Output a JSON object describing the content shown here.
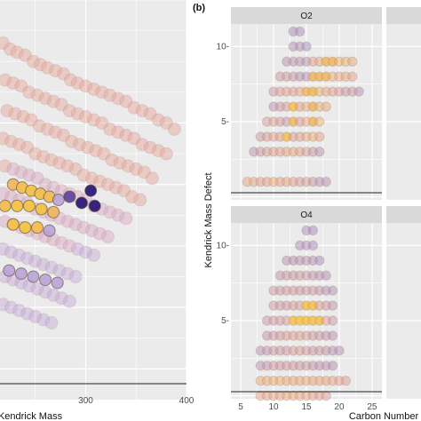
{
  "chart_data": [
    {
      "type": "scatter",
      "panel": "a",
      "xlabel": "Kendrick Mass",
      "ylabel": "",
      "xlim": [
        215,
        400
      ],
      "ylim": [
        -0.3,
        1.0
      ],
      "x_ticks": [
        300,
        400
      ],
      "x_tick_labels": [
        "300",
        "400"
      ],
      "grid": true,
      "series": [
        {
          "role": "background-cloud",
          "x": [
            218,
            225,
            232,
            240,
            248,
            255,
            262,
            270,
            278,
            285,
            292,
            300,
            308,
            316,
            324,
            332,
            340,
            348,
            356,
            364,
            372,
            380,
            388,
            220,
            228,
            236,
            244,
            252,
            260,
            268,
            276,
            284,
            292,
            300,
            308,
            316,
            324,
            332,
            340,
            348,
            356,
            364,
            372,
            380,
            222,
            230,
            238,
            246,
            254,
            262,
            270,
            278,
            286,
            294,
            302,
            310,
            318,
            326,
            334,
            342,
            350,
            358,
            366,
            218,
            226,
            234,
            242,
            250,
            258,
            266,
            274,
            282,
            290,
            298,
            306,
            314,
            322,
            330,
            338,
            346,
            354,
            220,
            228,
            236,
            244,
            252,
            260,
            268,
            276,
            284,
            292,
            300,
            308,
            316,
            324,
            332,
            340,
            218,
            226,
            234,
            242,
            250,
            258,
            266,
            274,
            282,
            290,
            298,
            306,
            314,
            322,
            220,
            228,
            236,
            244,
            252,
            260,
            268,
            276,
            284,
            292,
            300,
            308,
            218,
            226,
            234,
            242,
            250,
            258,
            266,
            274,
            282,
            290,
            220,
            228,
            236,
            244,
            252,
            260,
            268,
            276,
            284,
            218,
            226,
            234,
            242,
            250,
            258,
            266
          ],
          "y": [
            0.86,
            0.84,
            0.83,
            0.82,
            0.8,
            0.79,
            0.78,
            0.77,
            0.76,
            0.74,
            0.73,
            0.72,
            0.71,
            0.7,
            0.69,
            0.68,
            0.67,
            0.65,
            0.64,
            0.63,
            0.61,
            0.6,
            0.58,
            0.74,
            0.73,
            0.72,
            0.7,
            0.69,
            0.68,
            0.67,
            0.66,
            0.64,
            0.63,
            0.62,
            0.61,
            0.6,
            0.58,
            0.57,
            0.56,
            0.55,
            0.53,
            0.52,
            0.51,
            0.5,
            0.64,
            0.63,
            0.62,
            0.61,
            0.59,
            0.58,
            0.57,
            0.56,
            0.54,
            0.53,
            0.52,
            0.51,
            0.5,
            0.48,
            0.47,
            0.46,
            0.45,
            0.44,
            0.42,
            0.55,
            0.54,
            0.53,
            0.52,
            0.5,
            0.49,
            0.48,
            0.47,
            0.46,
            0.45,
            0.43,
            0.42,
            0.41,
            0.4,
            0.39,
            0.38,
            0.36,
            0.35,
            0.46,
            0.45,
            0.44,
            0.43,
            0.42,
            0.4,
            0.39,
            0.38,
            0.37,
            0.36,
            0.35,
            0.33,
            0.32,
            0.31,
            0.3,
            0.29,
            0.37,
            0.36,
            0.35,
            0.34,
            0.32,
            0.31,
            0.3,
            0.29,
            0.28,
            0.27,
            0.26,
            0.25,
            0.24,
            0.23,
            0.28,
            0.27,
            0.26,
            0.25,
            0.24,
            0.23,
            0.22,
            0.21,
            0.2,
            0.19,
            0.18,
            0.17,
            0.19,
            0.18,
            0.17,
            0.16,
            0.15,
            0.14,
            0.13,
            0.12,
            0.11,
            0.1,
            0.1,
            0.09,
            0.08,
            0.07,
            0.06,
            0.05,
            0.04,
            0.03,
            0.02,
            0.01,
            0.0,
            -0.01,
            -0.02,
            -0.03,
            -0.04,
            -0.05
          ]
        },
        {
          "role": "highlight",
          "x": [
            228,
            237,
            246,
            255,
            264,
            273,
            220,
            232,
            244,
            256,
            268,
            228,
            240,
            252,
            264,
            224,
            236,
            248,
            260,
            272,
            284,
            296,
            305,
            309
          ],
          "y": [
            0.4,
            0.39,
            0.38,
            0.37,
            0.36,
            0.35,
            0.33,
            0.33,
            0.33,
            0.32,
            0.31,
            0.27,
            0.26,
            0.26,
            0.25,
            0.12,
            0.11,
            0.1,
            0.09,
            0.08,
            0.36,
            0.34,
            0.38,
            0.33
          ],
          "level": [
            0.8,
            0.9,
            0.95,
            0.9,
            0.85,
            0.7,
            0.9,
            1,
            1,
            0.95,
            0.8,
            0.95,
            1,
            0.9,
            0.7,
            0.55,
            0.5,
            0.6,
            0.5,
            0.45,
            0.25,
            0.15,
            0.1,
            0.2
          ]
        }
      ]
    },
    {
      "type": "scatter",
      "panel": "b",
      "panel_label": "(b)",
      "xlabel": "Carbon Number",
      "ylabel": "Kendrick Mass Defect",
      "xlim": [
        3.5,
        26.5
      ],
      "ylim": [
        -0.2,
        11.5
      ],
      "x_ticks": [
        5,
        10,
        15,
        20,
        25
      ],
      "x_tick_labels": [
        "5",
        "10",
        "15",
        "20",
        "25"
      ],
      "y_ticks": [
        5,
        10
      ],
      "y_tick_labels": [
        "5-",
        "10-"
      ],
      "grid": true,
      "facets": [
        {
          "label": "O2",
          "x": [
            13,
            14,
            13,
            14,
            15,
            12,
            13,
            14,
            15,
            16,
            17,
            18,
            19,
            20,
            21,
            22,
            11,
            12,
            13,
            14,
            15,
            16,
            17,
            18,
            19,
            20,
            21,
            22,
            10,
            11,
            12,
            13,
            14,
            15,
            16,
            17,
            18,
            19,
            20,
            21,
            22,
            23,
            10,
            11,
            12,
            13,
            14,
            15,
            16,
            17,
            18,
            9,
            10,
            11,
            12,
            13,
            14,
            15,
            16,
            17,
            8,
            9,
            10,
            11,
            12,
            13,
            14,
            15,
            16,
            17,
            7,
            8,
            9,
            10,
            11,
            12,
            13,
            14,
            15,
            16,
            17,
            6,
            7,
            8,
            9,
            10,
            11,
            12,
            13,
            14,
            15,
            16,
            17,
            18
          ],
          "y": [
            11,
            11,
            10,
            10,
            10,
            9,
            9,
            9,
            9,
            9,
            9,
            9,
            9,
            9,
            9,
            9,
            8,
            8,
            8,
            8,
            8,
            8,
            8,
            8,
            8,
            8,
            8,
            8,
            7,
            7,
            7,
            7,
            7,
            7,
            7,
            7,
            7,
            7,
            7,
            7,
            7,
            7,
            6,
            6,
            6,
            6,
            6,
            6,
            6,
            6,
            6,
            5,
            5,
            5,
            5,
            5,
            5,
            5,
            5,
            5,
            4,
            4,
            4,
            4,
            4,
            4,
            4,
            4,
            4,
            4,
            3,
            3,
            3,
            3,
            3,
            3,
            3,
            3,
            3,
            3,
            3,
            1,
            1,
            1,
            1,
            1,
            1,
            1,
            1,
            1,
            1,
            1,
            1,
            1
          ],
          "level": [
            0.1,
            0.1,
            0.15,
            0.15,
            0.1,
            0.2,
            0.25,
            0.2,
            0.15,
            0.5,
            0.6,
            0.8,
            0.8,
            0.7,
            0.7,
            0.6,
            0.3,
            0.35,
            0.3,
            0.2,
            0.15,
            0.75,
            0.8,
            0.8,
            0.7,
            0.6,
            0.6,
            0.5,
            0.3,
            0.45,
            0.5,
            0.45,
            0.6,
            0.8,
            0.85,
            0.7,
            0.6,
            0.5,
            0.4,
            0.3,
            0.3,
            0.2,
            0.2,
            0.3,
            0.4,
            0.95,
            0.5,
            0.6,
            0.8,
            0.7,
            0.6,
            0.4,
            0.45,
            0.35,
            0.3,
            0.85,
            0.4,
            0.55,
            0.8,
            0.7,
            0.3,
            0.4,
            0.5,
            0.45,
            0.9,
            0.4,
            0.5,
            0.6,
            0.7,
            0.5,
            0.2,
            0.3,
            0.4,
            0.45,
            0.5,
            0.55,
            0.6,
            0.5,
            0.4,
            0.3,
            0.2,
            0.6,
            0.6,
            0.5,
            0.5,
            0.7,
            0.5,
            0.6,
            0.5,
            0.4,
            0.4,
            0.3,
            0.2,
            0.2
          ]
        },
        {
          "label": "O4",
          "x": [
            15,
            16,
            14,
            15,
            16,
            12,
            13,
            14,
            15,
            16,
            17,
            11,
            12,
            13,
            14,
            15,
            16,
            17,
            18,
            10,
            11,
            12,
            13,
            14,
            15,
            16,
            17,
            18,
            19,
            10,
            11,
            12,
            13,
            14,
            15,
            16,
            17,
            18,
            19,
            9,
            10,
            11,
            12,
            13,
            14,
            15,
            16,
            17,
            18,
            19,
            9,
            10,
            11,
            12,
            13,
            14,
            15,
            16,
            17,
            18,
            19,
            8,
            9,
            10,
            11,
            12,
            13,
            14,
            15,
            16,
            17,
            18,
            19,
            20,
            8,
            9,
            10,
            11,
            12,
            13,
            14,
            15,
            16,
            17,
            18,
            19,
            8,
            9,
            10,
            11,
            12,
            13,
            14,
            15,
            16,
            17,
            18,
            19,
            20,
            21,
            8,
            9,
            10,
            11,
            12,
            13,
            14,
            15,
            16,
            17,
            18
          ],
          "y": [
            11,
            11,
            10,
            10,
            10,
            9,
            9,
            9,
            9,
            9,
            9,
            8,
            8,
            8,
            8,
            8,
            8,
            8,
            8,
            7,
            7,
            7,
            7,
            7,
            7,
            7,
            7,
            7,
            7,
            6,
            6,
            6,
            6,
            6,
            6,
            6,
            6,
            6,
            6,
            5,
            5,
            5,
            5,
            5,
            5,
            5,
            5,
            5,
            5,
            5,
            4,
            4,
            4,
            4,
            4,
            4,
            4,
            4,
            4,
            4,
            4,
            3,
            3,
            3,
            3,
            3,
            3,
            3,
            3,
            3,
            3,
            3,
            3,
            3,
            2,
            2,
            2,
            2,
            2,
            2,
            2,
            2,
            2,
            2,
            2,
            2,
            1,
            1,
            1,
            1,
            1,
            1,
            1,
            1,
            1,
            1,
            1,
            1,
            1,
            1,
            0,
            0,
            0,
            0,
            0,
            0,
            0,
            0,
            0,
            0,
            0
          ],
          "level": [
            0.1,
            0.1,
            0.1,
            0.15,
            0.1,
            0.2,
            0.15,
            0.2,
            0.2,
            0.15,
            0.1,
            0.25,
            0.3,
            0.3,
            0.35,
            0.3,
            0.25,
            0.2,
            0.15,
            0.3,
            0.3,
            0.35,
            0.35,
            0.35,
            0.3,
            0.35,
            0.25,
            0.2,
            0.15,
            0.3,
            0.35,
            0.3,
            0.35,
            0.4,
            0.9,
            0.9,
            0.45,
            0.35,
            0.25,
            0.3,
            0.3,
            0.35,
            0.4,
            0.95,
            1,
            0.95,
            0.95,
            0.9,
            0.5,
            0.3,
            0.25,
            0.3,
            0.35,
            0.4,
            0.45,
            0.45,
            0.4,
            0.35,
            0.3,
            0.25,
            0.2,
            0.2,
            0.25,
            0.3,
            0.3,
            0.35,
            0.4,
            0.4,
            0.35,
            0.3,
            0.3,
            0.25,
            0.2,
            0.15,
            0.2,
            0.25,
            0.3,
            0.3,
            0.35,
            0.35,
            0.3,
            0.3,
            0.25,
            0.2,
            0.2,
            0.15,
            0.65,
            0.65,
            0.65,
            0.7,
            0.65,
            0.65,
            0.65,
            0.65,
            0.6,
            0.6,
            0.6,
            0.55,
            0.5,
            0.45,
            0.55,
            0.55,
            0.55,
            0.6,
            0.6,
            0.6,
            0.6,
            0.55,
            0.5,
            0.45,
            0.4
          ]
        }
      ]
    }
  ]
}
